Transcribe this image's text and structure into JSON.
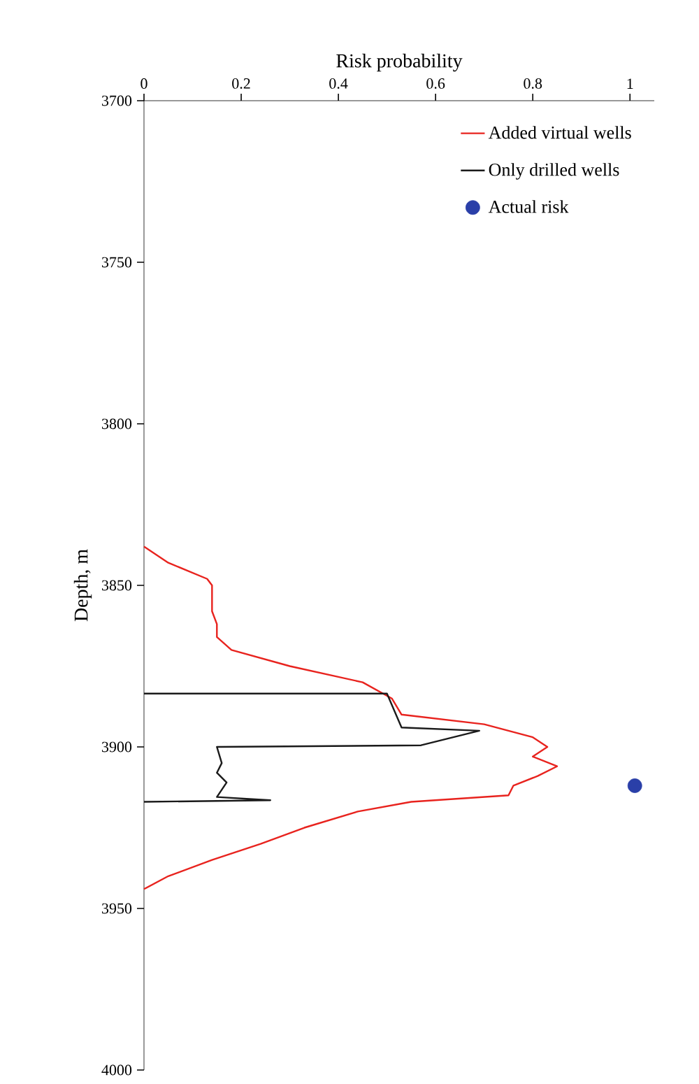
{
  "chart_data": {
    "type": "line",
    "xlabel": "Risk probability",
    "ylabel": "Depth, m",
    "xlim": [
      0,
      1.05
    ],
    "ylim": [
      4000,
      3700
    ],
    "xticks": [
      0,
      0.2,
      0.4,
      0.6,
      0.8,
      1
    ],
    "yticks": [
      3700,
      3750,
      3800,
      3850,
      3900,
      3950,
      4000
    ],
    "grid": false,
    "legend": "top right",
    "line_style": "solid",
    "series": [
      {
        "name": "Added virtual wells",
        "color": "#e8231e",
        "x": [
          0,
          0.05,
          0.13,
          0.14,
          0.14,
          0.15,
          0.15,
          0.18,
          0.3,
          0.45,
          0.51,
          0.53,
          0.7,
          0.8,
          0.83,
          0.8,
          0.85,
          0.81,
          0.76,
          0.75,
          0.55,
          0.44,
          0.33,
          0.24,
          0.14,
          0.05,
          0
        ],
        "values": [
          3838,
          3843,
          3848,
          3850,
          3858,
          3862,
          3866,
          3870,
          3875,
          3880,
          3885,
          3890,
          3893,
          3897,
          3900,
          3903,
          3906,
          3909,
          3912,
          3915,
          3917,
          3920,
          3925,
          3930,
          3935,
          3940,
          3944
        ]
      },
      {
        "name": "Only drilled wells",
        "color": "#1a1a1a",
        "x": [
          0,
          0.5,
          0.53,
          0.69,
          0.57,
          0.15,
          0.16,
          0.15,
          0.17,
          0.15,
          0.26,
          0
        ],
        "values": [
          3883.5,
          3883.5,
          3894,
          3895,
          3899.5,
          3900,
          3905,
          3908,
          3911,
          3915.5,
          3916.5,
          3917
        ]
      },
      {
        "name": "Actual risk",
        "type": "scatter",
        "marker": "circle",
        "color": "#2a3fa8",
        "x": [
          1.01
        ],
        "values": [
          3912
        ]
      }
    ]
  }
}
